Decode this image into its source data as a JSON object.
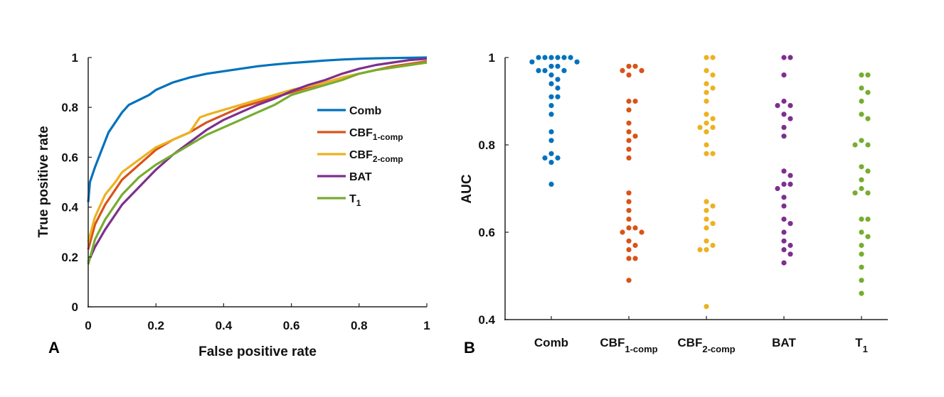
{
  "chart_data": [
    {
      "panel_label": "A",
      "type": "line",
      "xlabel": "False positive rate",
      "ylabel": "True positive rate",
      "xlim": [
        0,
        1
      ],
      "ylim": [
        0,
        1
      ],
      "xticks": [
        "0",
        "0.2",
        "0.4",
        "0.6",
        "0.8",
        "1"
      ],
      "yticks": [
        "0",
        "0.2",
        "0.4",
        "0.6",
        "0.8",
        "1"
      ],
      "legend_position": "center-right",
      "series": [
        {
          "name": "Comb",
          "name_main": "Comb",
          "name_sub": "",
          "color": "#0072BD",
          "x": [
            0,
            0.005,
            0.02,
            0.04,
            0.06,
            0.08,
            0.1,
            0.12,
            0.15,
            0.18,
            0.2,
            0.25,
            0.3,
            0.35,
            0.4,
            0.45,
            0.5,
            0.55,
            0.6,
            0.65,
            0.7,
            0.75,
            0.8,
            0.85,
            0.9,
            0.95,
            1.0
          ],
          "y": [
            0.42,
            0.5,
            0.56,
            0.63,
            0.7,
            0.74,
            0.78,
            0.81,
            0.83,
            0.85,
            0.87,
            0.9,
            0.92,
            0.935,
            0.945,
            0.955,
            0.965,
            0.972,
            0.978,
            0.983,
            0.988,
            0.992,
            0.995,
            0.997,
            0.998,
            0.999,
            1.0
          ]
        },
        {
          "name": "CBF1-comp",
          "name_main": "CBF",
          "name_sub": "1-comp",
          "color": "#D95319",
          "x": [
            0,
            0.02,
            0.05,
            0.08,
            0.1,
            0.15,
            0.2,
            0.25,
            0.3,
            0.35,
            0.4,
            0.45,
            0.5,
            0.55,
            0.6,
            0.65,
            0.7,
            0.75,
            0.8,
            0.85,
            0.9,
            0.95,
            1.0
          ],
          "y": [
            0.23,
            0.33,
            0.41,
            0.47,
            0.51,
            0.57,
            0.63,
            0.67,
            0.7,
            0.74,
            0.77,
            0.8,
            0.82,
            0.84,
            0.86,
            0.88,
            0.9,
            0.92,
            0.935,
            0.95,
            0.965,
            0.975,
            0.985
          ]
        },
        {
          "name": "CBF2-comp",
          "name_main": "CBF",
          "name_sub": "2-comp",
          "color": "#EDB120",
          "x": [
            0,
            0.02,
            0.05,
            0.08,
            0.1,
            0.15,
            0.2,
            0.25,
            0.3,
            0.33,
            0.35,
            0.4,
            0.45,
            0.5,
            0.55,
            0.6,
            0.65,
            0.7,
            0.75,
            0.8,
            0.85,
            0.9,
            0.95,
            1.0
          ],
          "y": [
            0.26,
            0.36,
            0.45,
            0.5,
            0.54,
            0.59,
            0.64,
            0.67,
            0.7,
            0.76,
            0.77,
            0.79,
            0.81,
            0.83,
            0.85,
            0.87,
            0.885,
            0.9,
            0.92,
            0.935,
            0.95,
            0.96,
            0.97,
            0.98
          ]
        },
        {
          "name": "BAT",
          "name_main": "BAT",
          "name_sub": "",
          "color": "#7E2F8E",
          "x": [
            0,
            0.02,
            0.05,
            0.08,
            0.1,
            0.15,
            0.2,
            0.25,
            0.3,
            0.35,
            0.4,
            0.45,
            0.5,
            0.55,
            0.6,
            0.65,
            0.7,
            0.75,
            0.8,
            0.85,
            0.9,
            0.95,
            1.0
          ],
          "y": [
            0.18,
            0.24,
            0.31,
            0.37,
            0.41,
            0.48,
            0.55,
            0.61,
            0.66,
            0.71,
            0.75,
            0.78,
            0.81,
            0.835,
            0.865,
            0.89,
            0.91,
            0.935,
            0.955,
            0.97,
            0.98,
            0.99,
            0.995
          ]
        },
        {
          "name": "T1",
          "name_main": "T",
          "name_sub": "1",
          "color": "#77AC30",
          "x": [
            0,
            0.02,
            0.05,
            0.08,
            0.1,
            0.15,
            0.2,
            0.25,
            0.3,
            0.35,
            0.4,
            0.45,
            0.5,
            0.55,
            0.6,
            0.65,
            0.7,
            0.75,
            0.8,
            0.85,
            0.9,
            0.95,
            1.0
          ],
          "y": [
            0.17,
            0.27,
            0.35,
            0.41,
            0.45,
            0.52,
            0.57,
            0.61,
            0.65,
            0.69,
            0.72,
            0.75,
            0.78,
            0.81,
            0.85,
            0.87,
            0.89,
            0.91,
            0.935,
            0.95,
            0.96,
            0.97,
            0.98
          ]
        }
      ]
    },
    {
      "panel_label": "B",
      "type": "scatter",
      "ylabel": "AUC",
      "ylim": [
        0.4,
        1
      ],
      "yticks": [
        "0.4",
        "0.6",
        "0.8",
        "1"
      ],
      "categories": [
        {
          "name": "Comb",
          "name_main": "Comb",
          "name_sub": "",
          "color": "#0072BD",
          "values": [
            1.0,
            1.0,
            1.0,
            1.0,
            1.0,
            1.0,
            0.99,
            0.99,
            0.98,
            0.98,
            0.97,
            0.97,
            0.97,
            0.96,
            0.95,
            0.94,
            0.93,
            0.91,
            0.91,
            0.89,
            0.87,
            0.83,
            0.81,
            0.78,
            0.77,
            0.77,
            0.76,
            0.71
          ]
        },
        {
          "name": "CBF1-comp",
          "name_main": "CBF",
          "name_sub": "1-comp",
          "color": "#D95319",
          "values": [
            0.98,
            0.98,
            0.97,
            0.97,
            0.96,
            0.9,
            0.9,
            0.88,
            0.85,
            0.83,
            0.82,
            0.81,
            0.79,
            0.77,
            0.69,
            0.67,
            0.65,
            0.63,
            0.61,
            0.61,
            0.6,
            0.6,
            0.58,
            0.57,
            0.56,
            0.54,
            0.54,
            0.49
          ]
        },
        {
          "name": "CBF2-comp",
          "name_main": "CBF",
          "name_sub": "2-comp",
          "color": "#EDB120",
          "values": [
            1.0,
            1.0,
            0.97,
            0.96,
            0.94,
            0.93,
            0.92,
            0.9,
            0.87,
            0.86,
            0.85,
            0.84,
            0.84,
            0.83,
            0.8,
            0.78,
            0.78,
            0.67,
            0.66,
            0.65,
            0.63,
            0.62,
            0.61,
            0.58,
            0.57,
            0.56,
            0.56,
            0.43
          ]
        },
        {
          "name": "BAT",
          "name_main": "BAT",
          "name_sub": "",
          "color": "#7E2F8E",
          "values": [
            1.0,
            1.0,
            0.96,
            0.9,
            0.89,
            0.89,
            0.87,
            0.86,
            0.84,
            0.82,
            0.74,
            0.73,
            0.71,
            0.71,
            0.7,
            0.68,
            0.66,
            0.63,
            0.62,
            0.6,
            0.58,
            0.57,
            0.56,
            0.55,
            0.53
          ]
        },
        {
          "name": "T1",
          "name_main": "T",
          "name_sub": "1",
          "color": "#77AC30",
          "values": [
            0.96,
            0.96,
            0.93,
            0.92,
            0.9,
            0.87,
            0.86,
            0.81,
            0.8,
            0.8,
            0.75,
            0.74,
            0.72,
            0.7,
            0.69,
            0.69,
            0.63,
            0.63,
            0.6,
            0.59,
            0.57,
            0.55,
            0.52,
            0.49,
            0.46
          ]
        }
      ]
    }
  ]
}
